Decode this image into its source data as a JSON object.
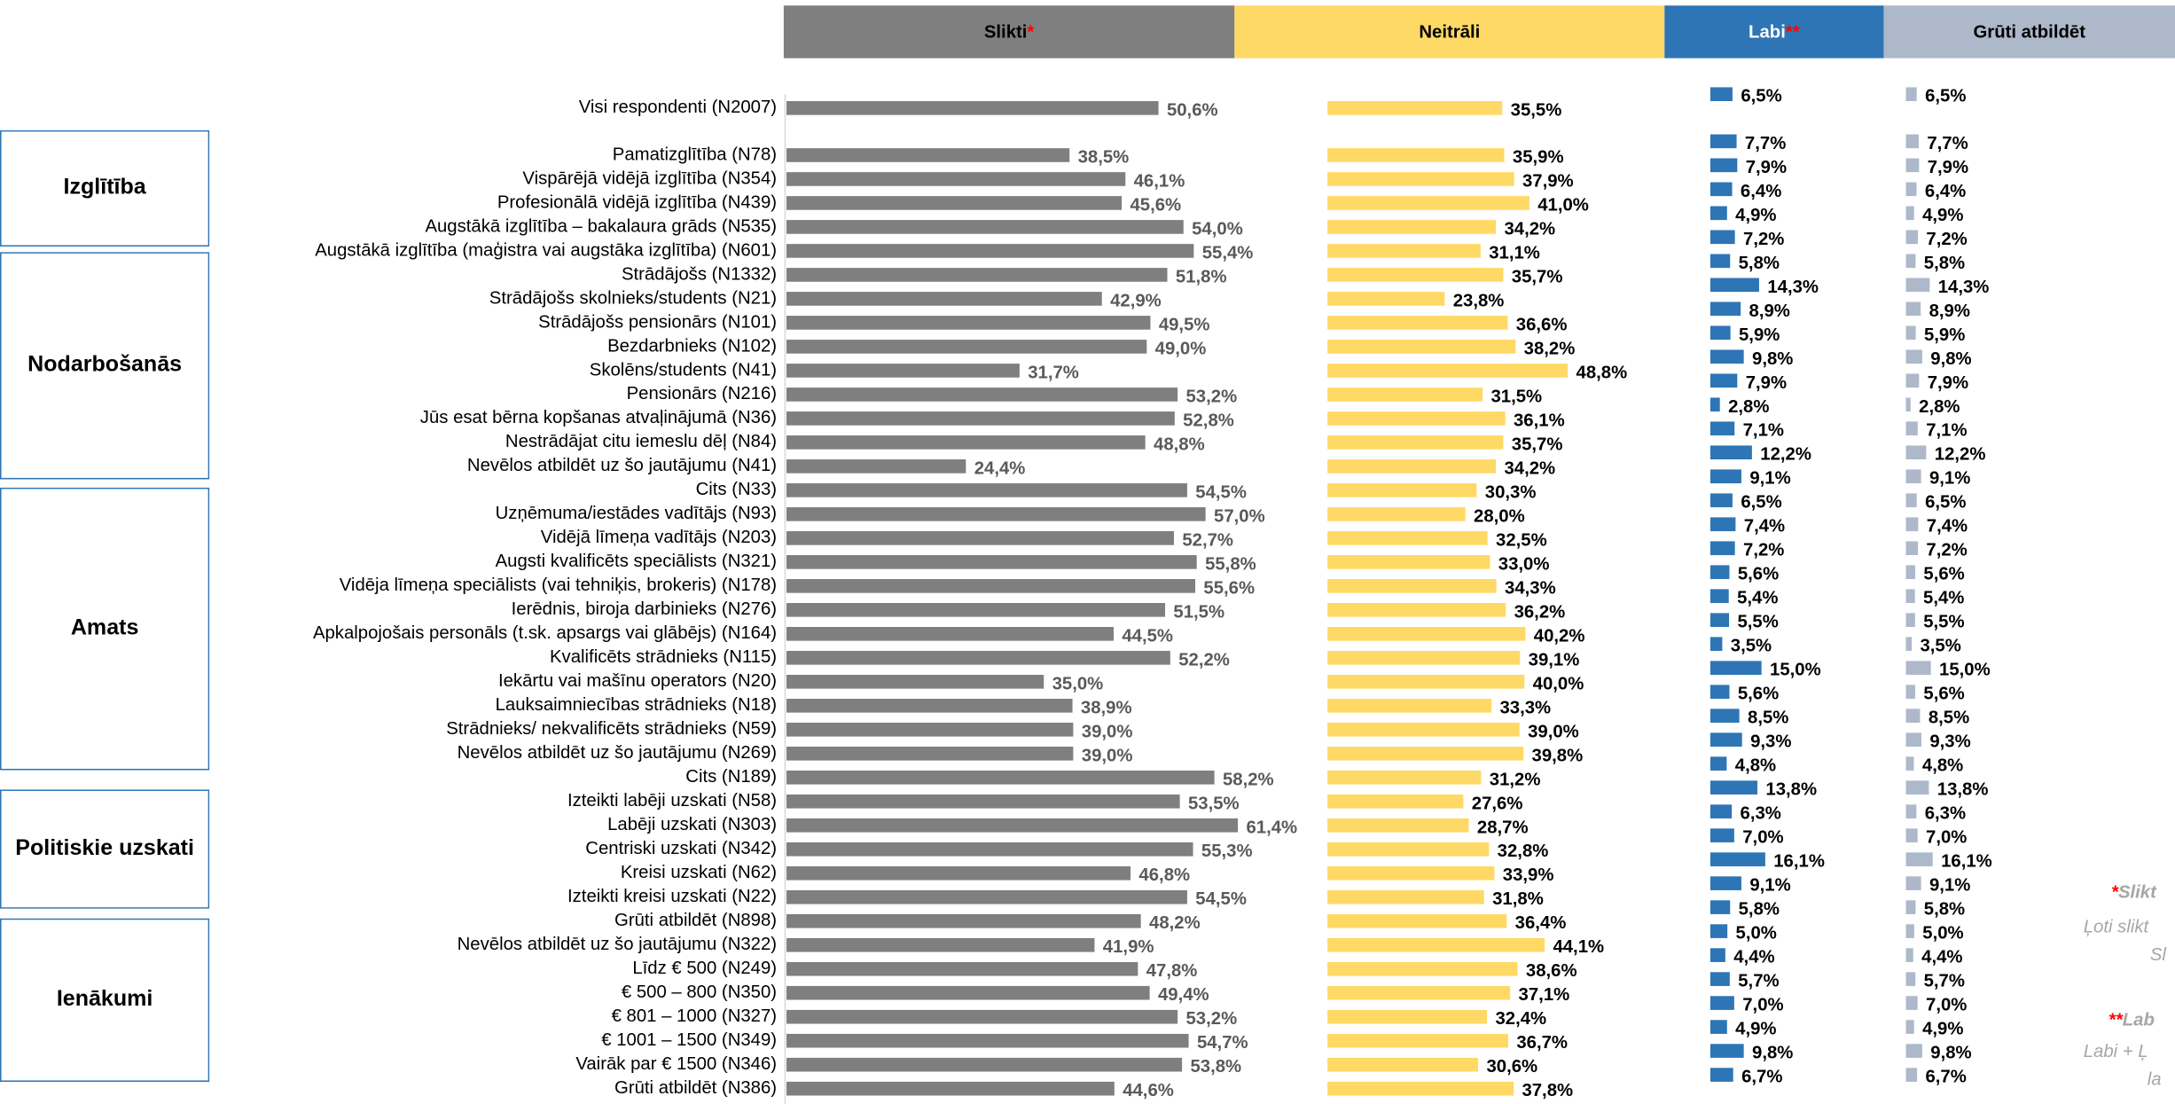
{
  "chart_data": {
    "type": "bar",
    "categories": [
      "Visi respondenti (N2007)",
      "Pamatizglītība (N78)",
      "Vispārējā vidējā izglītība (N354)",
      "Profesionālā vidējā izglītība (N439)",
      "Augstākā izglītība – bakalaura grāds (N535)",
      "Augstākā izglītība (maģistra vai augstāka izglītība) (N601)",
      "Strādājošs (N1332)",
      "Strādājošs skolnieks/students (N21)",
      "Strādājošs pensionārs (N101)",
      "Bezdarbnieks (N102)",
      "Skolēns/students (N41)",
      "Pensionārs (N216)",
      "Jūs esat bērna kopšanas atvaļinājumā (N36)",
      "Nestrādājat citu iemeslu dēļ (N84)",
      "Nevēlos atbildēt uz šo jautājumu (N41)",
      "Cits (N33)",
      "Uzņēmuma/iestādes vadītājs (N93)",
      "Vidējā līmeņa vadītājs (N203)",
      "Augsti kvalificēts speciālists (N321)",
      "Vidēja līmeņa speciālists (vai tehniķis, brokeris) (N178)",
      "Ierēdnis, biroja darbinieks (N276)",
      "Apkalpojošais personāls (t.sk. apsargs vai glābējs) (N164)",
      "Kvalificēts strādnieks (N115)",
      "Iekārtu vai mašīnu operators (N20)",
      "Lauksaimniecības strādnieks (N18)",
      "Strādnieks/ nekvalificēts strādnieks (N59)",
      "Nevēlos atbildēt uz šo jautājumu (N269)",
      "Cits (N189)",
      "Izteikti labēji uzskati (N58)",
      "Labēji uzskati (N303)",
      "Centriski uzskati (N342)",
      "Kreisi uzskati (N62)",
      "Izteikti kreisi uzskati (N22)",
      "Grūti atbildēt (N898)",
      "Nevēlos atbildēt uz šo jautājumu (N322)",
      "Līdz € 500 (N249)",
      "€ 500 – 800 (N350)",
      "€ 801 – 1000 (N327)",
      "€ 1001 – 1500 (N349)",
      "Vairāk par € 1500 (N346)",
      "Grūti atbildēt (N386)"
    ],
    "series": [
      {
        "name": "Slikti",
        "marker": "*",
        "color": "#7f7f7f",
        "values": [
          50.6,
          38.5,
          46.1,
          45.6,
          54.0,
          55.4,
          51.8,
          42.9,
          49.5,
          49.0,
          31.7,
          53.2,
          52.8,
          48.8,
          24.4,
          54.5,
          57.0,
          52.7,
          55.8,
          55.6,
          51.5,
          44.5,
          52.2,
          35.0,
          38.9,
          39.0,
          39.0,
          58.2,
          53.5,
          61.4,
          55.3,
          46.8,
          54.5,
          48.2,
          41.9,
          47.8,
          49.4,
          53.2,
          54.7,
          53.8,
          44.6
        ],
        "value_labels": [
          "50,6%",
          "38,5%",
          "46,1%",
          "45,6%",
          "54,0%",
          "55,4%",
          "51,8%",
          "42,9%",
          "49,5%",
          "49,0%",
          "31,7%",
          "53,2%",
          "52,8%",
          "48,8%",
          "24,4%",
          "54,5%",
          "57,0%",
          "52,7%",
          "55,8%",
          "55,6%",
          "51,5%",
          "44,5%",
          "52,2%",
          "35,0%",
          "38,9%",
          "39,0%",
          "39,0%",
          "58,2%",
          "53,5%",
          "61,4%",
          "55,3%",
          "46,8%",
          "54,5%",
          "48,2%",
          "41,9%",
          "47,8%",
          "49,4%",
          "53,2%",
          "54,7%",
          "53,8%",
          "44,6%"
        ]
      },
      {
        "name": "Neitrāli",
        "color": "#ffd966",
        "values": [
          35.5,
          35.9,
          37.9,
          41.0,
          34.2,
          31.1,
          35.7,
          23.8,
          36.6,
          38.2,
          48.8,
          31.5,
          36.1,
          35.7,
          34.2,
          30.3,
          28.0,
          32.5,
          33.0,
          34.3,
          36.2,
          40.2,
          39.1,
          40.0,
          33.3,
          39.0,
          39.8,
          31.2,
          27.6,
          28.7,
          32.8,
          33.9,
          31.8,
          36.4,
          44.1,
          38.6,
          37.1,
          32.4,
          36.7,
          30.6,
          37.8
        ],
        "value_labels": [
          "35,5%",
          "35,9%",
          "37,9%",
          "41,0%",
          "34,2%",
          "31,1%",
          "35,7%",
          "23,8%",
          "36,6%",
          "38,2%",
          "48,8%",
          "31,5%",
          "36,1%",
          "35,7%",
          "34,2%",
          "30,3%",
          "28,0%",
          "32,5%",
          "33,0%",
          "34,3%",
          "36,2%",
          "40,2%",
          "39,1%",
          "40,0%",
          "33,3%",
          "39,0%",
          "39,8%",
          "31,2%",
          "27,6%",
          "28,7%",
          "32,8%",
          "33,9%",
          "31,8%",
          "36,4%",
          "44,1%",
          "38,6%",
          "37,1%",
          "32,4%",
          "36,7%",
          "30,6%",
          "37,8%"
        ]
      },
      {
        "name": "Labi",
        "marker": "**",
        "color": "#2e75b6",
        "values": [
          6.5,
          7.7,
          7.9,
          6.4,
          4.9,
          7.2,
          5.8,
          14.3,
          8.9,
          5.9,
          9.8,
          7.9,
          2.8,
          7.1,
          12.2,
          9.1,
          6.5,
          7.4,
          7.2,
          5.6,
          5.4,
          5.5,
          3.5,
          15.0,
          5.6,
          8.5,
          9.3,
          4.8,
          13.8,
          6.3,
          7.0,
          16.1,
          9.1,
          5.8,
          5.0,
          4.4,
          5.7,
          7.0,
          4.9,
          9.8,
          6.7
        ],
        "value_labels": [
          "6,5%",
          "7,7%",
          "7,9%",
          "6,4%",
          "4,9%",
          "7,2%",
          "5,8%",
          "14,3%",
          "8,9%",
          "5,9%",
          "9,8%",
          "7,9%",
          "2,8%",
          "7,1%",
          "12,2%",
          "9,1%",
          "6,5%",
          "7,4%",
          "7,2%",
          "5,6%",
          "5,4%",
          "5,5%",
          "3,5%",
          "15,0%",
          "5,6%",
          "8,5%",
          "9,3%",
          "4,8%",
          "13,8%",
          "6,3%",
          "7,0%",
          "16,1%",
          "9,1%",
          "5,8%",
          "5,0%",
          "4,4%",
          "5,7%",
          "7,0%",
          "4,9%",
          "9,8%",
          "6,7%"
        ]
      },
      {
        "name": "Grūti atbildēt",
        "color": "#adb9ca",
        "values": [
          6.5,
          7.7,
          7.9,
          6.4,
          4.9,
          7.2,
          5.8,
          14.3,
          8.9,
          5.9,
          9.8,
          7.9,
          2.8,
          7.1,
          12.2,
          9.1,
          6.5,
          7.4,
          7.2,
          5.6,
          5.4,
          5.5,
          3.5,
          15.0,
          5.6,
          8.5,
          9.3,
          4.8,
          13.8,
          6.3,
          7.0,
          16.1,
          9.1,
          5.8,
          5.0,
          4.4,
          5.7,
          7.0,
          4.9,
          9.8,
          6.7
        ],
        "value_labels": [
          "6,5%",
          "7,7%",
          "7,9%",
          "6,4%",
          "4,9%",
          "7,2%",
          "5,8%",
          "14,3%",
          "8,9%",
          "5,9%",
          "9,8%",
          "7,9%",
          "2,8%",
          "7,1%",
          "12,2%",
          "9,1%",
          "6,5%",
          "7,4%",
          "7,2%",
          "5,6%",
          "5,4%",
          "5,5%",
          "3,5%",
          "15,0%",
          "5,6%",
          "8,5%",
          "9,3%",
          "4,8%",
          "13,8%",
          "6,3%",
          "7,0%",
          "16,1%",
          "9,1%",
          "5,8%",
          "5,0%",
          "4,4%",
          "5,7%",
          "7,0%",
          "4,9%",
          "9,8%",
          "6,7%"
        ]
      }
    ],
    "groups": [
      {
        "label": "Izglītība"
      },
      {
        "label": "Nodarbošanās"
      },
      {
        "label": "Amats"
      },
      {
        "label": "Politiskie uzskati"
      },
      {
        "label": "Ienākumi"
      }
    ],
    "notes": [
      {
        "marker": "*",
        "text": "Slikt"
      },
      {
        "text": "Ļoti slikt"
      },
      {
        "text": "Sl"
      },
      {
        "marker": "**",
        "text": "Lab"
      },
      {
        "text": "Labi + Ļ"
      },
      {
        "text": "la"
      }
    ]
  }
}
